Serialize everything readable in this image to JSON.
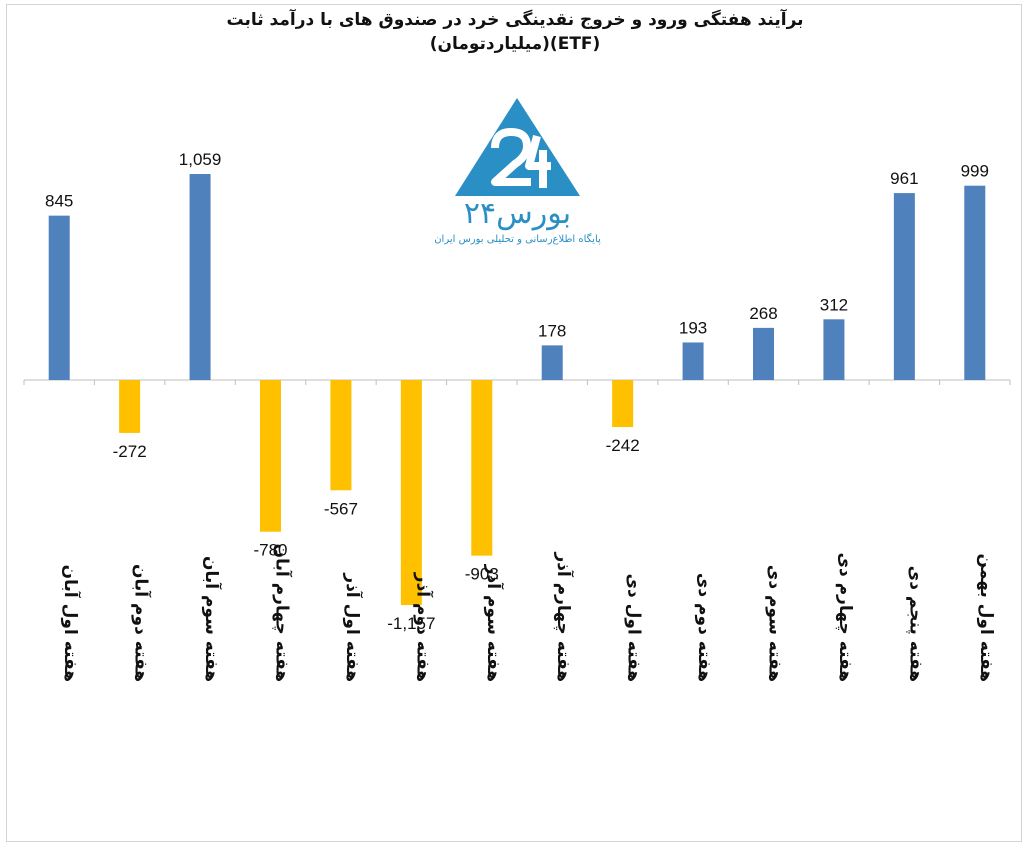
{
  "chart_data": {
    "type": "bar",
    "title": "برآیند هفتگی ورود و خروج نقدینگی خرد در صندوق های با درآمد ثابت",
    "subtitle": "(ETF)(میلیاردتومان)",
    "categories": [
      "هفته اول آبان",
      "هفته دوم آبان",
      "هفته سوم آبان",
      "هفته چهارم آبان",
      "هفته اول آذر",
      "هفته دوم آذر",
      "هفته سوم آذر",
      "هفته چهارم آذر",
      "هفته اول دی",
      "هفته دوم دی",
      "هفته سوم دی",
      "هفته چهارم دی",
      "هفته پنجم دی",
      "هفته اول بهمن"
    ],
    "values": [
      845,
      -272,
      1059,
      -780,
      -567,
      -1157,
      -903,
      178,
      -242,
      193,
      268,
      312,
      961,
      999
    ],
    "value_labels": [
      "845",
      "-272",
      "1,059",
      "-780",
      "-567",
      "-1,157",
      "-903",
      "178",
      "-242",
      "193",
      "268",
      "312",
      "961",
      "999"
    ],
    "ylim": [
      -1550,
      1200
    ],
    "grid": false,
    "colors": {
      "positive": "#4f81bd",
      "negative": "#ffc000"
    }
  },
  "logo": {
    "name": "بورس۲۴",
    "tagline": "پایگاه اطلاع‌رسانی و تحلیلی بورس ایران",
    "color": "#2a8fc4"
  }
}
